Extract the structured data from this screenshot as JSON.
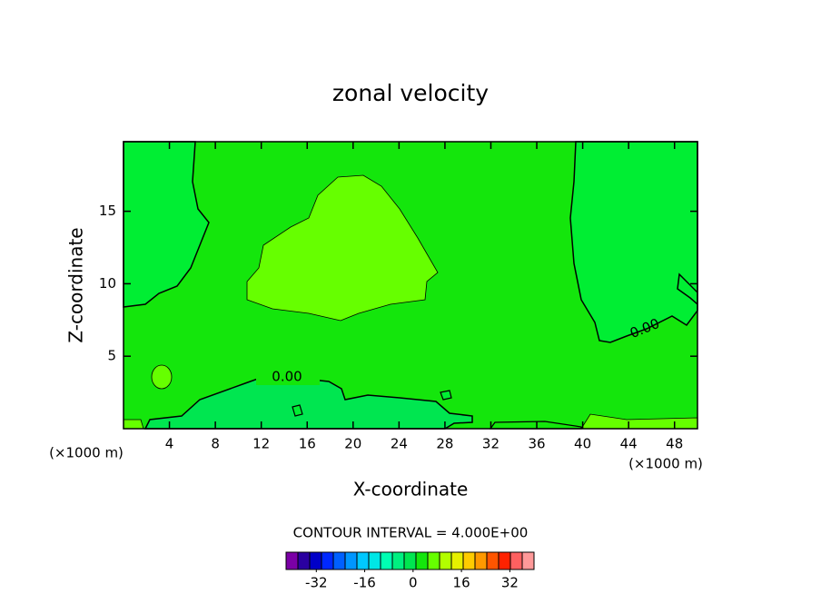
{
  "chart_data": {
    "type": "contour",
    "title": "zonal velocity",
    "x_label": "X-coordinate",
    "y_label": "Z-coordinate",
    "x_unit_labels": [
      "(×1000 m)",
      "(×1000 m)"
    ],
    "xlim": [
      0,
      50
    ],
    "ylim": [
      0,
      19.8
    ],
    "xticks": [
      4,
      8,
      12,
      16,
      20,
      24,
      28,
      32,
      36,
      40,
      44,
      48
    ],
    "yticks": [
      5,
      10,
      15
    ],
    "contour_labels": [
      "0.00",
      "0.00"
    ],
    "colorbar": {
      "title": "CONTOUR INTERVAL = 4.000E+00",
      "clim": [
        -42,
        40
      ],
      "ticks": [
        -32,
        -16,
        0,
        16,
        32
      ],
      "colors": [
        "#7b00a6",
        "#2a00a0",
        "#0000c8",
        "#0028ff",
        "#0060ff",
        "#0096ff",
        "#00c8ff",
        "#00e6e6",
        "#00ffb3",
        "#00f080",
        "#00e650",
        "#14e60c",
        "#66ff00",
        "#b3ff00",
        "#e6f000",
        "#ffcc00",
        "#ff9900",
        "#ff5500",
        "#ff2200",
        "#ff6060",
        "#ff9999"
      ]
    }
  }
}
